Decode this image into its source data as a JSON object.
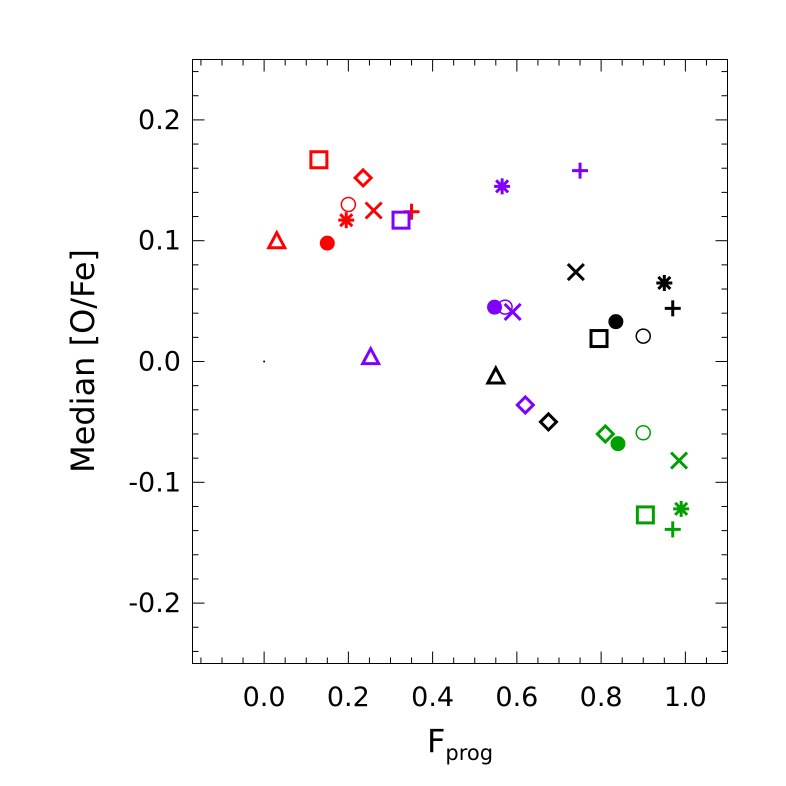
{
  "chart_data": {
    "type": "scatter",
    "xlabel": "F",
    "xlabel_subscript": "prog",
    "ylabel": "Median [O/Fe]",
    "xlim": [
      -0.17,
      1.1
    ],
    "ylim": [
      -0.25,
      0.25
    ],
    "xticks": [
      "0.0",
      "0.2",
      "0.4",
      "0.6",
      "0.8",
      "1.0"
    ],
    "yticks": [
      "0.2",
      "0.1",
      "0.0",
      "-0.1",
      "-0.2"
    ],
    "grid": false,
    "legend": "none",
    "colors": {
      "red": "#ff0000",
      "purple": "#7f00ff",
      "black": "#000000",
      "green": "#00a000"
    },
    "series": [
      {
        "color": "red",
        "points": [
          {
            "marker": "square",
            "x": 0.13,
            "y": 0.167
          },
          {
            "marker": "diamond",
            "x": 0.235,
            "y": 0.152
          },
          {
            "marker": "circle-open",
            "x": 0.2,
            "y": 0.13
          },
          {
            "marker": "x",
            "x": 0.26,
            "y": 0.125
          },
          {
            "marker": "plus",
            "x": 0.35,
            "y": 0.124
          },
          {
            "marker": "asterisk",
            "x": 0.195,
            "y": 0.117
          },
          {
            "marker": "triangle",
            "x": 0.03,
            "y": 0.1
          },
          {
            "marker": "circle-filled",
            "x": 0.15,
            "y": 0.098
          }
        ]
      },
      {
        "color": "purple",
        "points": [
          {
            "marker": "plus",
            "x": 0.75,
            "y": 0.158
          },
          {
            "marker": "asterisk",
            "x": 0.565,
            "y": 0.145
          },
          {
            "marker": "square",
            "x": 0.325,
            "y": 0.117
          },
          {
            "marker": "circle-filled",
            "x": 0.547,
            "y": 0.045
          },
          {
            "marker": "circle-open",
            "x": 0.572,
            "y": 0.045
          },
          {
            "marker": "x",
            "x": 0.59,
            "y": 0.041
          },
          {
            "marker": "triangle",
            "x": 0.253,
            "y": 0.004
          },
          {
            "marker": "diamond",
            "x": 0.62,
            "y": -0.036
          }
        ]
      },
      {
        "color": "black",
        "points": [
          {
            "marker": "x",
            "x": 0.74,
            "y": 0.074
          },
          {
            "marker": "asterisk",
            "x": 0.95,
            "y": 0.065
          },
          {
            "marker": "plus",
            "x": 0.97,
            "y": 0.044
          },
          {
            "marker": "circle-filled",
            "x": 0.835,
            "y": 0.033
          },
          {
            "marker": "circle-open",
            "x": 0.9,
            "y": 0.021
          },
          {
            "marker": "square",
            "x": 0.795,
            "y": 0.019
          },
          {
            "marker": "triangle",
            "x": 0.55,
            "y": -0.012
          },
          {
            "marker": "diamond",
            "x": 0.675,
            "y": -0.05
          }
        ]
      },
      {
        "color": "green",
        "points": [
          {
            "marker": "diamond",
            "x": 0.81,
            "y": -0.06
          },
          {
            "marker": "circle-open",
            "x": 0.9,
            "y": -0.059
          },
          {
            "marker": "circle-filled",
            "x": 0.84,
            "y": -0.068
          },
          {
            "marker": "x",
            "x": 0.985,
            "y": -0.082
          },
          {
            "marker": "asterisk",
            "x": 0.99,
            "y": -0.122
          },
          {
            "marker": "square",
            "x": 0.905,
            "y": -0.127
          },
          {
            "marker": "plus",
            "x": 0.97,
            "y": -0.139
          }
        ]
      }
    ],
    "extra_points": [
      {
        "marker": "dot",
        "x": 0.0,
        "y": 0.0,
        "color": "black"
      }
    ]
  }
}
